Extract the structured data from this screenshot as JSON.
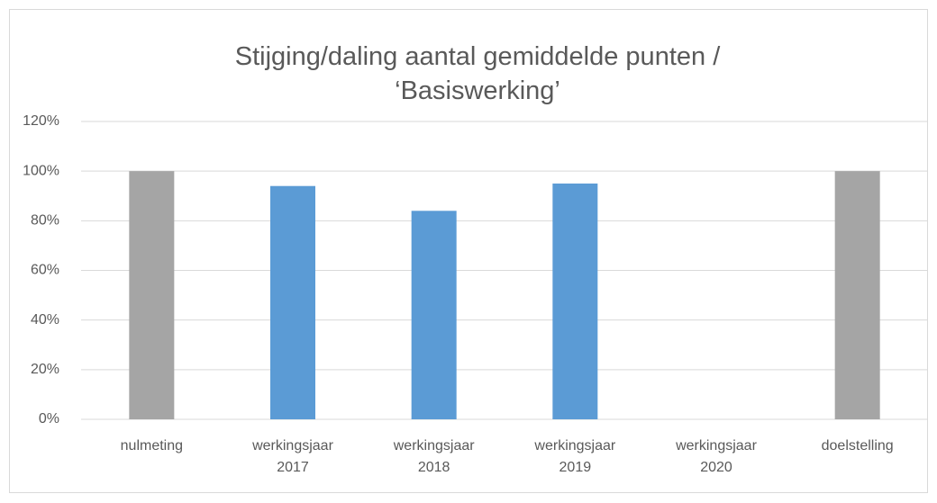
{
  "chart_data": {
    "type": "bar",
    "title": "Stijging/daling aantal gemiddelde punten / ‘Basiswerking’",
    "categories": [
      "nulmeting",
      "werkingsjaar 2017",
      "werkingsjaar 2018",
      "werkingsjaar 2019",
      "werkingsjaar 2020",
      "doelstelling"
    ],
    "values": [
      100,
      94,
      84,
      95,
      null,
      100
    ],
    "colors": [
      "#a5a5a5",
      "#5b9bd5",
      "#5b9bd5",
      "#5b9bd5",
      "#5b9bd5",
      "#a5a5a5"
    ],
    "ylim": [
      0,
      120
    ],
    "yticks": [
      {
        "value": 0,
        "label": "0%"
      },
      {
        "value": 20,
        "label": "20%"
      },
      {
        "value": 40,
        "label": "40%"
      },
      {
        "value": 60,
        "label": "60%"
      },
      {
        "value": 80,
        "label": "80%"
      },
      {
        "value": 100,
        "label": "100%"
      },
      {
        "value": 120,
        "label": "120%"
      }
    ],
    "grid": true
  }
}
